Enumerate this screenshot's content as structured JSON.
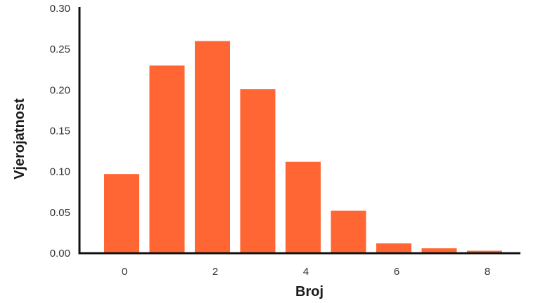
{
  "chart_data": {
    "type": "bar",
    "title": "",
    "xlabel": "Broj",
    "ylabel": "Vjerojatnost",
    "x": [
      0,
      1,
      2,
      3,
      4,
      5,
      6,
      7,
      8
    ],
    "values": [
      0.097,
      0.23,
      0.26,
      0.201,
      0.112,
      0.052,
      0.012,
      0.006,
      0.003
    ],
    "xticks": [
      "0",
      "2",
      "4",
      "6",
      "8"
    ],
    "xtick_values": [
      0,
      2,
      4,
      6,
      8
    ],
    "yticks": [
      "0.00",
      "0.05",
      "0.10",
      "0.15",
      "0.20",
      "0.25",
      "0.30"
    ],
    "ytick_values": [
      0,
      0.05,
      0.1,
      0.15,
      0.2,
      0.25,
      0.3
    ],
    "ylim": [
      0,
      0.3
    ],
    "grid": false,
    "bar_color": "#ff6633",
    "axis_color": "#111111"
  }
}
